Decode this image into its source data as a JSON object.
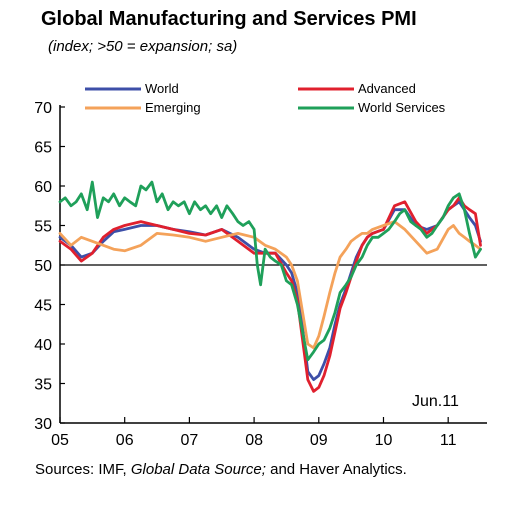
{
  "figure": {
    "title": "Global Manufacturing and Services PMI",
    "subtitle": "(index; >50 = expansion; sa)",
    "source_prefix": "Sources: IMF, ",
    "source_italic": "Global Data Source;",
    "source_suffix": " and Haver Analytics.",
    "annotation": "Jun.11"
  },
  "chart_data": {
    "type": "line",
    "ylim": [
      30,
      70
    ],
    "yticks": [
      30,
      35,
      40,
      45,
      50,
      55,
      60,
      65,
      70
    ],
    "xlim": [
      2005.0,
      2011.6
    ],
    "xticks": [
      {
        "value": 2005,
        "label": "05"
      },
      {
        "value": 2006,
        "label": "06"
      },
      {
        "value": 2007,
        "label": "07"
      },
      {
        "value": 2008,
        "label": "08"
      },
      {
        "value": 2009,
        "label": "09"
      },
      {
        "value": 2010,
        "label": "10"
      },
      {
        "value": 2011,
        "label": "11"
      }
    ],
    "reference_line": 50,
    "legend_position": "top",
    "series": [
      {
        "name": "World",
        "color": "#3d4fa8",
        "x": [
          2005.0,
          2005.17,
          2005.33,
          2005.5,
          2005.67,
          2005.83,
          2006.0,
          2006.25,
          2006.5,
          2006.75,
          2007.0,
          2007.25,
          2007.5,
          2007.75,
          2008.0,
          2008.17,
          2008.33,
          2008.5,
          2008.58,
          2008.67,
          2008.75,
          2008.83,
          2008.92,
          2009.0,
          2009.08,
          2009.17,
          2009.25,
          2009.33,
          2009.42,
          2009.5,
          2009.58,
          2009.67,
          2009.75,
          2009.83,
          2010.0,
          2010.17,
          2010.33,
          2010.5,
          2010.67,
          2010.83,
          2011.0,
          2011.08,
          2011.17,
          2011.25,
          2011.33,
          2011.42,
          2011.5
        ],
        "y": [
          53.5,
          52.5,
          51.0,
          51.5,
          53.0,
          54.2,
          54.5,
          55.0,
          55.0,
          54.5,
          54.2,
          53.8,
          54.5,
          53.5,
          52.0,
          51.5,
          51.5,
          50.0,
          49.0,
          46.5,
          42.0,
          36.5,
          35.5,
          36.0,
          37.5,
          39.5,
          42.5,
          45.0,
          47.0,
          49.0,
          51.0,
          52.5,
          53.5,
          54.0,
          54.5,
          57.0,
          57.0,
          55.0,
          54.5,
          55.0,
          57.0,
          57.5,
          58.0,
          57.0,
          56.0,
          55.0,
          53.0
        ]
      },
      {
        "name": "Advanced",
        "color": "#e0202e",
        "x": [
          2005.0,
          2005.17,
          2005.33,
          2005.5,
          2005.67,
          2005.83,
          2006.0,
          2006.25,
          2006.5,
          2006.75,
          2007.0,
          2007.25,
          2007.5,
          2007.75,
          2008.0,
          2008.17,
          2008.33,
          2008.5,
          2008.58,
          2008.67,
          2008.75,
          2008.83,
          2008.92,
          2009.0,
          2009.08,
          2009.17,
          2009.25,
          2009.33,
          2009.42,
          2009.5,
          2009.58,
          2009.67,
          2009.75,
          2009.83,
          2010.0,
          2010.17,
          2010.33,
          2010.5,
          2010.67,
          2010.83,
          2011.0,
          2011.08,
          2011.17,
          2011.25,
          2011.33,
          2011.42,
          2011.5
        ],
        "y": [
          53.0,
          52.0,
          50.5,
          51.5,
          53.5,
          54.5,
          55.0,
          55.5,
          55.0,
          54.5,
          54.0,
          53.8,
          54.5,
          53.0,
          51.5,
          51.5,
          51.5,
          49.0,
          48.0,
          45.5,
          40.5,
          35.5,
          34.0,
          34.5,
          36.0,
          38.5,
          41.5,
          44.5,
          46.5,
          48.5,
          50.5,
          52.5,
          53.5,
          54.0,
          54.5,
          57.5,
          58.0,
          55.5,
          54.0,
          55.0,
          57.0,
          57.5,
          58.5,
          57.5,
          57.0,
          56.5,
          52.5
        ]
      },
      {
        "name": "Emerging",
        "color": "#f4a25a",
        "x": [
          2005.0,
          2005.17,
          2005.33,
          2005.5,
          2005.67,
          2005.83,
          2006.0,
          2006.25,
          2006.5,
          2006.75,
          2007.0,
          2007.25,
          2007.5,
          2007.75,
          2008.0,
          2008.17,
          2008.33,
          2008.5,
          2008.58,
          2008.67,
          2008.75,
          2008.83,
          2008.92,
          2009.0,
          2009.08,
          2009.17,
          2009.25,
          2009.33,
          2009.42,
          2009.5,
          2009.58,
          2009.67,
          2009.75,
          2009.83,
          2010.0,
          2010.17,
          2010.33,
          2010.5,
          2010.67,
          2010.83,
          2011.0,
          2011.08,
          2011.17,
          2011.25,
          2011.33,
          2011.42,
          2011.5
        ],
        "y": [
          54.0,
          52.5,
          53.5,
          53.0,
          52.5,
          52.0,
          51.8,
          52.5,
          54.0,
          53.8,
          53.5,
          53.0,
          53.5,
          54.0,
          53.5,
          52.5,
          52.0,
          51.0,
          50.0,
          48.0,
          44.0,
          40.0,
          39.5,
          41.0,
          43.5,
          46.5,
          49.0,
          51.0,
          52.0,
          53.0,
          53.5,
          54.0,
          54.0,
          54.5,
          55.0,
          55.5,
          54.5,
          53.0,
          51.5,
          52.0,
          54.5,
          55.0,
          54.0,
          53.5,
          53.0,
          52.5,
          52.0
        ]
      },
      {
        "name": "World Services",
        "color": "#1fa05a",
        "x": [
          2005.0,
          2005.08,
          2005.17,
          2005.25,
          2005.33,
          2005.42,
          2005.5,
          2005.58,
          2005.67,
          2005.75,
          2005.83,
          2005.92,
          2006.0,
          2006.08,
          2006.17,
          2006.25,
          2006.33,
          2006.42,
          2006.5,
          2006.58,
          2006.67,
          2006.75,
          2006.83,
          2006.92,
          2007.0,
          2007.08,
          2007.17,
          2007.25,
          2007.33,
          2007.42,
          2007.5,
          2007.58,
          2007.67,
          2007.75,
          2007.83,
          2007.92,
          2008.0,
          2008.05,
          2008.1,
          2008.17,
          2008.25,
          2008.33,
          2008.42,
          2008.5,
          2008.58,
          2008.67,
          2008.75,
          2008.83,
          2008.92,
          2009.0,
          2009.08,
          2009.17,
          2009.25,
          2009.33,
          2009.42,
          2009.5,
          2009.58,
          2009.67,
          2009.75,
          2009.83,
          2009.92,
          2010.0,
          2010.08,
          2010.17,
          2010.25,
          2010.33,
          2010.42,
          2010.5,
          2010.58,
          2010.67,
          2010.75,
          2010.83,
          2010.92,
          2011.0,
          2011.08,
          2011.17,
          2011.25,
          2011.33,
          2011.42,
          2011.5
        ],
        "y": [
          58.0,
          58.5,
          57.5,
          58.0,
          59.0,
          57.0,
          60.5,
          56.0,
          58.5,
          58.0,
          59.0,
          57.5,
          58.5,
          58.0,
          57.5,
          60.0,
          59.5,
          60.5,
          58.0,
          59.0,
          57.0,
          58.0,
          57.5,
          58.0,
          56.5,
          58.0,
          57.0,
          57.5,
          56.5,
          57.5,
          56.0,
          57.5,
          56.5,
          55.5,
          55.0,
          55.5,
          54.5,
          50.0,
          47.5,
          52.0,
          51.0,
          50.5,
          50.0,
          48.0,
          47.5,
          45.0,
          41.5,
          38.0,
          39.0,
          40.0,
          40.5,
          42.0,
          44.0,
          46.5,
          47.5,
          48.5,
          50.0,
          51.0,
          52.5,
          53.5,
          53.5,
          54.0,
          54.5,
          55.5,
          56.5,
          57.0,
          55.5,
          55.0,
          54.5,
          53.5,
          54.0,
          55.0,
          56.0,
          57.5,
          58.5,
          59.0,
          57.0,
          54.0,
          51.0,
          52.0
        ]
      }
    ]
  }
}
